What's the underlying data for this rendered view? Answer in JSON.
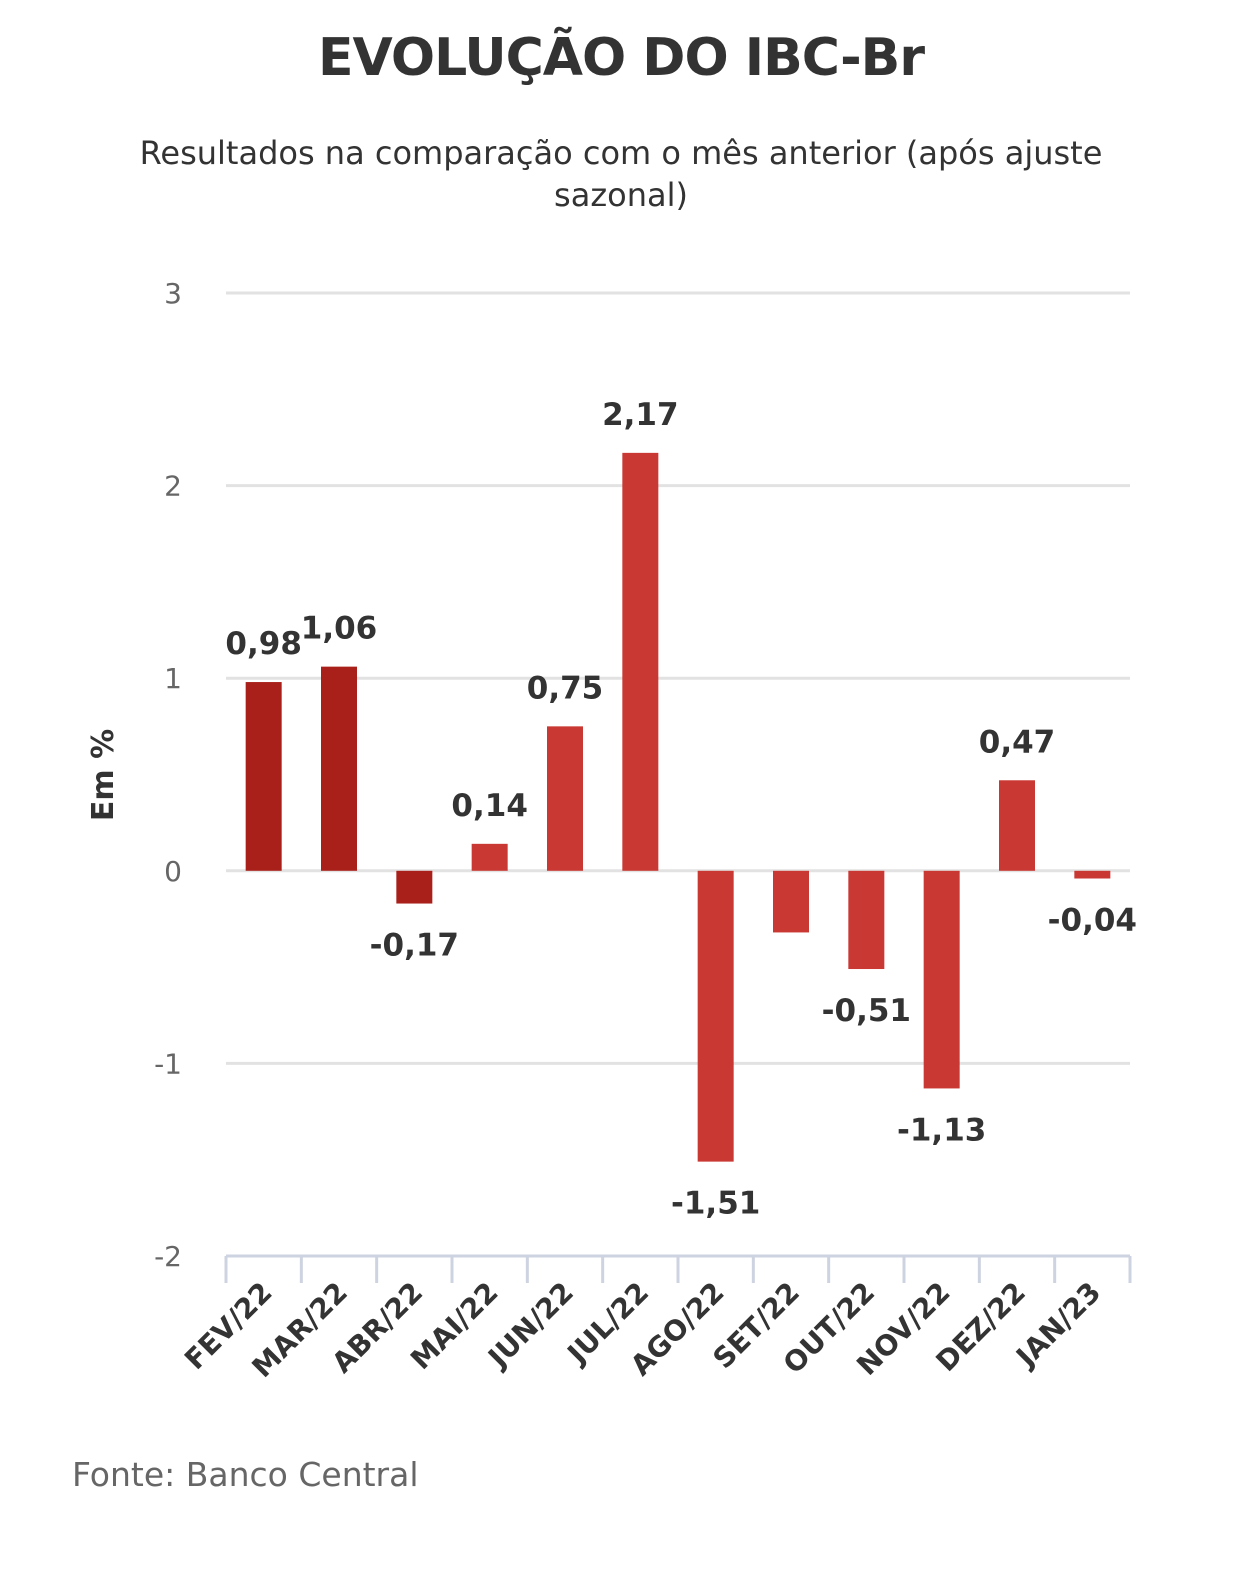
{
  "chart_data": {
    "type": "bar",
    "title": "EVOLUÇÃO DO IBC-Br",
    "subtitle": "Resultados na comparação com o mês anterior (após ajuste sazonal)",
    "ylabel": "Em %",
    "xlabel": "",
    "categories": [
      "FEV/22",
      "MAR/22",
      "ABR/22",
      "MAI/22",
      "JUN/22",
      "JUL/22",
      "AGO/22",
      "SET/22",
      "OUT/22",
      "NOV/22",
      "DEZ/22",
      "JAN/23"
    ],
    "values": [
      0.98,
      1.06,
      -0.17,
      0.14,
      0.75,
      2.17,
      -1.51,
      -0.32,
      -0.51,
      -1.13,
      0.47,
      -0.04
    ],
    "data_labels": [
      "0,98",
      "1,06",
      "-0,17",
      "0,14",
      "0,75",
      "2,17",
      "-1,51",
      "",
      "-0,51",
      "-1,13",
      "0,47",
      "-0,04"
    ],
    "yticks": [
      3,
      2,
      1,
      0,
      -1,
      -2
    ],
    "ylim": [
      -2,
      3
    ],
    "grid": true,
    "colors": {
      "highlight": "#a82019",
      "default": "#c93833",
      "highlight_categories": [
        "FEV/22",
        "MAR/22",
        "ABR/22"
      ]
    }
  },
  "source": "Fonte: Banco Central"
}
